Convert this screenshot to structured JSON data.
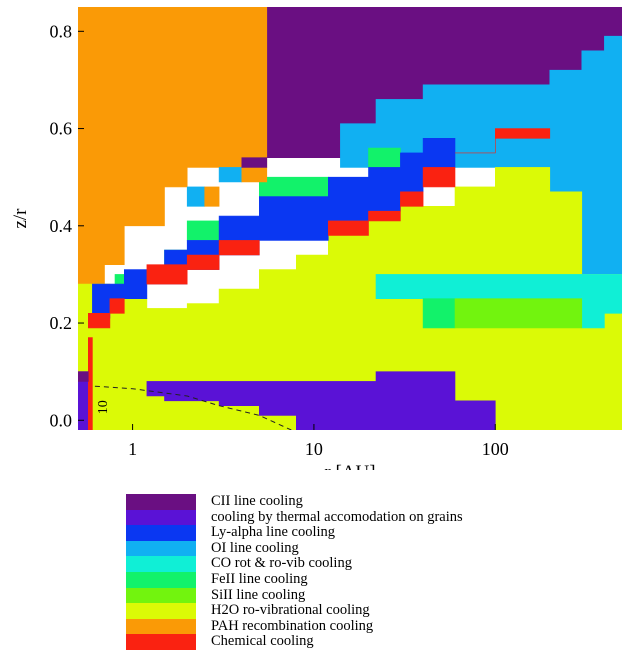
{
  "chart_data": {
    "type": "heatmap",
    "title": "",
    "xlabel": "r [AU]",
    "ylabel": "z/r",
    "x_scale": "log",
    "xlim": [
      0.5,
      500
    ],
    "ylim": [
      -0.02,
      0.85
    ],
    "x_ticks": [
      {
        "value": 1,
        "label": "1"
      },
      {
        "value": 10,
        "label": "10"
      },
      {
        "value": 100,
        "label": "100"
      }
    ],
    "y_ticks": [
      {
        "value": 0.0,
        "label": "0.0"
      },
      {
        "value": 0.2,
        "label": "0.2"
      },
      {
        "value": 0.4,
        "label": "0.4"
      },
      {
        "value": 0.6,
        "label": "0.6"
      },
      {
        "value": 0.8,
        "label": "0.8"
      }
    ],
    "legend_placement": "below plot",
    "categories": [
      {
        "key": "CII",
        "label": "CII line cooling",
        "color": "#6a0f82"
      },
      {
        "key": "GR",
        "label": "cooling by thermal accomodation on grains",
        "color": "#5a12d6"
      },
      {
        "key": "LYA",
        "label": "Ly-alpha line cooling",
        "color": "#0a37f2"
      },
      {
        "key": "OI",
        "label": "OI line cooling",
        "color": "#11b0f2"
      },
      {
        "key": "CO",
        "label": "CO rot & ro-vib cooling",
        "color": "#10efd6"
      },
      {
        "key": "FE",
        "label": "FeII line cooling",
        "color": "#12f26a"
      },
      {
        "key": "SI",
        "label": "SiII line cooling",
        "color": "#72f40e"
      },
      {
        "key": "H2O",
        "label": "H2O ro-vibrational cooling",
        "color": "#dbfa06"
      },
      {
        "key": "PAH",
        "label": "PAH recombination cooling",
        "color": "#fa9a06"
      },
      {
        "key": "CHEM",
        "label": "Chemical cooling",
        "color": "#fa2211"
      }
    ],
    "regions": [
      {
        "cat": "CII",
        "polygon": [
          [
            5.5,
            0.85
          ],
          [
            500,
            0.85
          ],
          [
            500,
            0.79
          ],
          [
            400,
            0.79
          ],
          [
            400,
            0.76
          ],
          [
            300,
            0.76
          ],
          [
            300,
            0.72
          ],
          [
            200,
            0.72
          ],
          [
            200,
            0.69
          ],
          [
            40,
            0.69
          ],
          [
            40,
            0.66
          ],
          [
            22,
            0.66
          ],
          [
            22,
            0.61
          ],
          [
            14,
            0.61
          ],
          [
            14,
            0.54
          ],
          [
            5.5,
            0.54
          ]
        ]
      },
      {
        "cat": "OI",
        "polygon": [
          [
            14,
            0.61
          ],
          [
            22,
            0.61
          ],
          [
            22,
            0.66
          ],
          [
            40,
            0.66
          ],
          [
            40,
            0.69
          ],
          [
            200,
            0.69
          ],
          [
            200,
            0.72
          ],
          [
            300,
            0.72
          ],
          [
            300,
            0.76
          ],
          [
            400,
            0.76
          ],
          [
            400,
            0.79
          ],
          [
            500,
            0.79
          ],
          [
            500,
            0.37
          ],
          [
            300,
            0.37
          ],
          [
            300,
            0.47
          ],
          [
            200,
            0.47
          ],
          [
            200,
            0.52
          ],
          [
            14,
            0.52
          ]
        ]
      },
      {
        "cat": "OI",
        "polygon": [
          [
            22,
            0.37
          ],
          [
            500,
            0.37
          ],
          [
            500,
            0.3
          ],
          [
            22,
            0.3
          ]
        ]
      },
      {
        "cat": "PAH",
        "polygon": [
          [
            0.5,
            0.85
          ],
          [
            5.5,
            0.85
          ],
          [
            5.5,
            0.52
          ],
          [
            2,
            0.52
          ],
          [
            2,
            0.48
          ],
          [
            1.5,
            0.48
          ],
          [
            1.5,
            0.4
          ],
          [
            0.9,
            0.4
          ],
          [
            0.9,
            0.32
          ],
          [
            0.7,
            0.32
          ],
          [
            0.7,
            0.28
          ],
          [
            0.5,
            0.28
          ]
        ]
      },
      {
        "cat": "H2O",
        "polygon": [
          [
            0.5,
            0.28
          ],
          [
            0.75,
            0.28
          ],
          [
            0.75,
            0.25
          ],
          [
            1.2,
            0.25
          ],
          [
            1.2,
            0.23
          ],
          [
            2,
            0.23
          ],
          [
            2,
            0.24
          ],
          [
            3,
            0.24
          ],
          [
            3,
            0.27
          ],
          [
            5,
            0.27
          ],
          [
            5,
            0.31
          ],
          [
            8,
            0.31
          ],
          [
            8,
            0.34
          ],
          [
            12,
            0.34
          ],
          [
            12,
            0.38
          ],
          [
            20,
            0.38
          ],
          [
            20,
            0.42
          ],
          [
            30,
            0.42
          ],
          [
            30,
            0.44
          ],
          [
            60,
            0.44
          ],
          [
            60,
            0.48
          ],
          [
            100,
            0.48
          ],
          [
            100,
            0.52
          ],
          [
            200,
            0.52
          ],
          [
            200,
            0.47
          ],
          [
            300,
            0.47
          ],
          [
            300,
            0.3
          ],
          [
            500,
            0.3
          ],
          [
            500,
            -0.02
          ],
          [
            0.5,
            -0.02
          ]
        ]
      },
      {
        "cat": "GR",
        "polygon": [
          [
            1.2,
            0.08
          ],
          [
            22,
            0.08
          ],
          [
            22,
            0.1
          ],
          [
            60,
            0.1
          ],
          [
            60,
            0.04
          ],
          [
            100,
            0.04
          ],
          [
            100,
            -0.02
          ],
          [
            8,
            -0.02
          ],
          [
            8,
            0.01
          ],
          [
            5,
            0.01
          ],
          [
            5,
            0.03
          ],
          [
            3,
            0.03
          ],
          [
            3,
            0.04
          ],
          [
            1.5,
            0.04
          ],
          [
            1.5,
            0.05
          ],
          [
            1.2,
            0.05
          ]
        ]
      },
      {
        "cat": "GR",
        "polygon": [
          [
            0.5,
            0.1
          ],
          [
            0.57,
            0.1
          ],
          [
            0.57,
            -0.02
          ],
          [
            0.5,
            -0.02
          ]
        ]
      },
      {
        "cat": "CO",
        "polygon": [
          [
            22,
            0.3
          ],
          [
            500,
            0.3
          ],
          [
            500,
            0.22
          ],
          [
            400,
            0.22
          ],
          [
            400,
            0.19
          ],
          [
            300,
            0.19
          ],
          [
            300,
            0.25
          ],
          [
            22,
            0.25
          ]
        ]
      },
      {
        "cat": "FE",
        "polygon": [
          [
            40,
            0.25
          ],
          [
            60,
            0.25
          ],
          [
            60,
            0.19
          ],
          [
            40,
            0.19
          ]
        ]
      },
      {
        "cat": "SI",
        "polygon": [
          [
            60,
            0.25
          ],
          [
            300,
            0.25
          ],
          [
            300,
            0.19
          ],
          [
            60,
            0.19
          ]
        ]
      },
      {
        "cat": "FE",
        "polygon": [
          [
            5,
            0.5
          ],
          [
            12,
            0.5
          ],
          [
            12,
            0.46
          ],
          [
            5,
            0.46
          ]
        ]
      },
      {
        "cat": "FE",
        "polygon": [
          [
            20,
            0.56
          ],
          [
            30,
            0.56
          ],
          [
            30,
            0.52
          ],
          [
            20,
            0.52
          ]
        ]
      },
      {
        "cat": "FE",
        "polygon": [
          [
            2,
            0.41
          ],
          [
            3,
            0.41
          ],
          [
            3,
            0.37
          ],
          [
            2,
            0.37
          ]
        ]
      },
      {
        "cat": "FE",
        "polygon": [
          [
            1.5,
            0.35
          ],
          [
            2,
            0.35
          ],
          [
            2,
            0.32
          ],
          [
            1.5,
            0.32
          ]
        ]
      },
      {
        "cat": "FE",
        "polygon": [
          [
            0.8,
            0.3
          ],
          [
            0.9,
            0.3
          ],
          [
            0.9,
            0.28
          ],
          [
            0.8,
            0.28
          ]
        ]
      },
      {
        "cat": "LYA",
        "polygon": [
          [
            0.6,
            0.28
          ],
          [
            0.9,
            0.28
          ],
          [
            0.9,
            0.31
          ],
          [
            1.5,
            0.31
          ],
          [
            1.5,
            0.35
          ],
          [
            2,
            0.35
          ],
          [
            2,
            0.37
          ],
          [
            3,
            0.37
          ],
          [
            3,
            0.42
          ],
          [
            5,
            0.42
          ],
          [
            5,
            0.46
          ],
          [
            12,
            0.46
          ],
          [
            12,
            0.5
          ],
          [
            20,
            0.5
          ],
          [
            20,
            0.52
          ],
          [
            30,
            0.52
          ],
          [
            30,
            0.55
          ],
          [
            40,
            0.55
          ],
          [
            40,
            0.58
          ],
          [
            60,
            0.58
          ],
          [
            60,
            0.52
          ],
          [
            40,
            0.52
          ],
          [
            40,
            0.47
          ],
          [
            30,
            0.47
          ],
          [
            30,
            0.43
          ],
          [
            20,
            0.43
          ],
          [
            20,
            0.41
          ],
          [
            12,
            0.41
          ],
          [
            12,
            0.37
          ],
          [
            5,
            0.37
          ],
          [
            5,
            0.34
          ],
          [
            3,
            0.34
          ],
          [
            3,
            0.31
          ],
          [
            2,
            0.31
          ],
          [
            2,
            0.28
          ],
          [
            1.2,
            0.28
          ],
          [
            1.2,
            0.25
          ],
          [
            0.75,
            0.25
          ],
          [
            0.75,
            0.21
          ],
          [
            0.6,
            0.21
          ]
        ]
      },
      {
        "cat": "CHEM",
        "polygon": [
          [
            1.2,
            0.28
          ],
          [
            2,
            0.28
          ],
          [
            2,
            0.31
          ],
          [
            3,
            0.31
          ],
          [
            3,
            0.34
          ],
          [
            5,
            0.34
          ],
          [
            5,
            0.37
          ],
          [
            3,
            0.37
          ],
          [
            3,
            0.34
          ],
          [
            2,
            0.34
          ],
          [
            2,
            0.32
          ],
          [
            1.2,
            0.32
          ]
        ]
      },
      {
        "cat": "CHEM",
        "polygon": [
          [
            12,
            0.41
          ],
          [
            20,
            0.41
          ],
          [
            20,
            0.43
          ],
          [
            30,
            0.43
          ],
          [
            30,
            0.47
          ],
          [
            40,
            0.47
          ],
          [
            40,
            0.44
          ],
          [
            30,
            0.44
          ],
          [
            30,
            0.41
          ],
          [
            20,
            0.41
          ],
          [
            20,
            0.38
          ],
          [
            12,
            0.38
          ]
        ]
      },
      {
        "cat": "CHEM",
        "polygon": [
          [
            60,
            0.55
          ],
          [
            100,
            0.55
          ],
          [
            100,
            0.58
          ],
          [
            200,
            0.58
          ],
          [
            200,
            0.6
          ],
          [
            100,
            0.6
          ],
          [
            100,
            0.55
          ],
          [
            60,
            0.55
          ]
        ]
      },
      {
        "cat": "CHEM",
        "polygon": [
          [
            60,
            0.48
          ],
          [
            60,
            0.52
          ],
          [
            40,
            0.52
          ],
          [
            40,
            0.48
          ]
        ]
      },
      {
        "cat": "CHEM",
        "polygon": [
          [
            0.57,
            0.19
          ],
          [
            0.75,
            0.19
          ],
          [
            0.75,
            0.22
          ],
          [
            0.9,
            0.22
          ],
          [
            0.9,
            0.25
          ],
          [
            0.75,
            0.25
          ],
          [
            0.75,
            0.22
          ],
          [
            0.57,
            0.22
          ]
        ]
      },
      {
        "cat": "CHEM",
        "polygon": [
          [
            0.57,
            -0.02
          ],
          [
            0.6,
            -0.02
          ],
          [
            0.6,
            0.17
          ],
          [
            0.57,
            0.17
          ]
        ]
      },
      {
        "cat": "OI",
        "polygon": [
          [
            2,
            0.48
          ],
          [
            2.5,
            0.48
          ],
          [
            2.5,
            0.44
          ],
          [
            2,
            0.44
          ]
        ]
      },
      {
        "cat": "OI",
        "polygon": [
          [
            3,
            0.52
          ],
          [
            4,
            0.52
          ],
          [
            4,
            0.49
          ],
          [
            3,
            0.49
          ]
        ]
      },
      {
        "cat": "PAH",
        "polygon": [
          [
            2.5,
            0.48
          ],
          [
            3,
            0.48
          ],
          [
            3,
            0.44
          ],
          [
            2.5,
            0.44
          ]
        ]
      },
      {
        "cat": "PAH",
        "polygon": [
          [
            4,
            0.52
          ],
          [
            5.5,
            0.52
          ],
          [
            5.5,
            0.49
          ],
          [
            4,
            0.49
          ]
        ]
      },
      {
        "cat": "CII",
        "polygon": [
          [
            4,
            0.54
          ],
          [
            5.5,
            0.54
          ],
          [
            5.5,
            0.52
          ],
          [
            4,
            0.52
          ]
        ]
      },
      {
        "cat": "CII",
        "polygon": [
          [
            0.5,
            0.08
          ],
          [
            0.57,
            0.08
          ],
          [
            0.57,
            0.1
          ],
          [
            0.5,
            0.1
          ]
        ]
      }
    ],
    "contour": {
      "label": "10",
      "points": [
        [
          0.62,
          0.07
        ],
        [
          1.0,
          0.065
        ],
        [
          2.0,
          0.05
        ],
        [
          3.0,
          0.03
        ],
        [
          5.0,
          0.01
        ],
        [
          7.5,
          -0.02
        ]
      ]
    }
  }
}
